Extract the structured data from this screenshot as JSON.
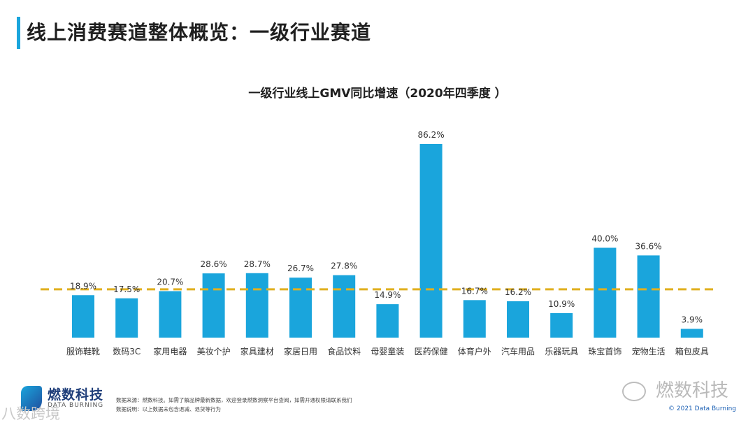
{
  "page": {
    "title": "线上消费赛道整体概览：一级行业赛道"
  },
  "footer": {
    "logo_text": "燃数科技",
    "logo_sub": "DATA BURNING",
    "source_line1": "数据来源：燃数科技。如需了解品牌最新数据，欢迎登录燃数洞察平台查阅，如需开通权限请联系我们",
    "source_line2": "数据说明：以上数据未包含退减、退货等行为",
    "watermark_left": "八数跨境",
    "watermark_right": "燃数科技",
    "copyright": "© 2021 Data Burning"
  },
  "colors": {
    "bar": "#1aa5dc",
    "reference_line": "#e0b020",
    "title_accent": "#1aa5dc"
  },
  "chart_data": {
    "type": "bar",
    "title": "一级行业线上GMV同比增速（2020年四季度 ）",
    "categories": [
      "服饰鞋靴",
      "数码3C",
      "家用电器",
      "美妆个护",
      "家具建材",
      "家居日用",
      "食品饮料",
      "母婴童装",
      "医药保健",
      "体育户外",
      "汽车用品",
      "乐器玩具",
      "珠宝首饰",
      "宠物生活",
      "箱包皮具"
    ],
    "values": [
      18.9,
      17.5,
      20.7,
      28.6,
      28.7,
      26.7,
      27.8,
      14.9,
      86.2,
      16.7,
      16.2,
      10.9,
      40.0,
      36.6,
      3.9
    ],
    "value_labels": [
      "18.9%",
      "17.5%",
      "20.7%",
      "28.6%",
      "28.7%",
      "26.7%",
      "27.8%",
      "14.9%",
      "86.2%",
      "16.7%",
      "16.2%",
      "10.9%",
      "40.0%",
      "36.6%",
      "3.9%"
    ],
    "reference_line": {
      "value": 21.5,
      "style": "dashed"
    },
    "ylim": [
      0,
      86.2
    ],
    "grid": false,
    "legend": "none"
  }
}
